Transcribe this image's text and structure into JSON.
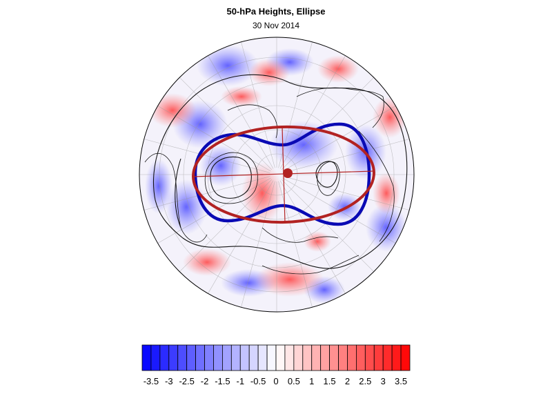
{
  "map": {
    "title": "50-hPa Heights, Ellipse",
    "date": "30 Nov 2014",
    "projection": "north-polar-stereographic",
    "fill_colors": {
      "negative": "#3b3bff",
      "positive": "#ff3b3b",
      "neutral": "#ffffff"
    },
    "fitted_ellipse_color": "#b22222",
    "contour_color": "#0a0ab4",
    "polar_marker_color": "#b22222"
  },
  "colorbar": {
    "levels": [
      -3.75,
      -3.5,
      -3.25,
      -3,
      -2.75,
      -2.5,
      -2.25,
      -2,
      -1.75,
      -1.5,
      -1.25,
      -1,
      -0.75,
      -0.5,
      -0.25,
      0,
      0.25,
      0.5,
      0.75,
      1,
      1.25,
      1.5,
      1.75,
      2,
      2.25,
      2.5,
      2.75,
      3,
      3.25,
      3.5,
      3.75
    ],
    "tick_labels": [
      "-3.5",
      "-3",
      "-2.5",
      "-2",
      "-1.5",
      "-1",
      "-0.5",
      "0",
      "0.5",
      "1",
      "1.5",
      "2",
      "2.5",
      "3",
      "3.5"
    ],
    "tick_values": [
      -3.5,
      -3,
      -2.5,
      -2,
      -1.5,
      -1,
      -0.5,
      0,
      0.5,
      1,
      1.5,
      2,
      2.5,
      3,
      3.5
    ],
    "min_color": "#0000ff",
    "max_color": "#ff0000"
  }
}
